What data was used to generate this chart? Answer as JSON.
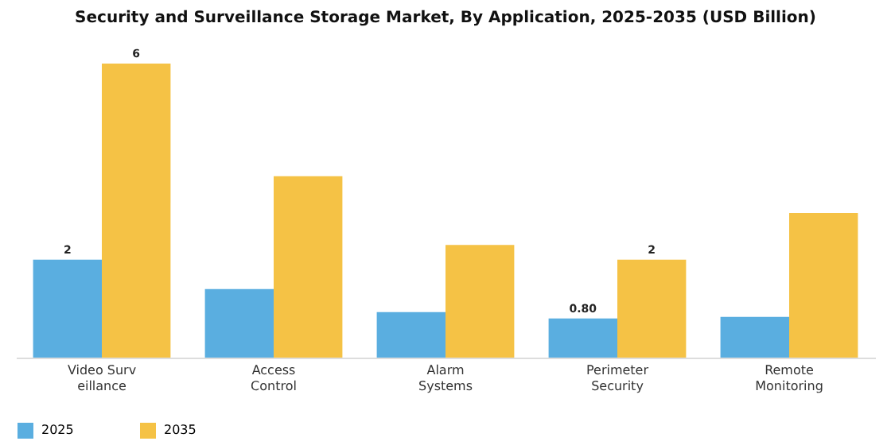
{
  "chart_data": {
    "type": "bar",
    "title": "Security and Surveillance Storage Market, By Application, 2025-2035 (USD Billion)",
    "categories": [
      "Video Surv\neillance",
      "Access\nControl",
      "Alarm\nSystems",
      "Perimeter\nSecurity",
      "Remote\nMonitoring"
    ],
    "series": [
      {
        "name": "2025",
        "color": "#5aaee0",
        "values": [
          2,
          1.4,
          0.93,
          0.8,
          0.83
        ],
        "value_labels": [
          "2",
          null,
          null,
          "0.80",
          null
        ]
      },
      {
        "name": "2035",
        "color": "#f5c245",
        "values": [
          6,
          3.7,
          2.3,
          2,
          2.95
        ],
        "value_labels": [
          "6",
          null,
          null,
          "2",
          null
        ]
      }
    ],
    "legend": "bottom",
    "grid": false
  }
}
